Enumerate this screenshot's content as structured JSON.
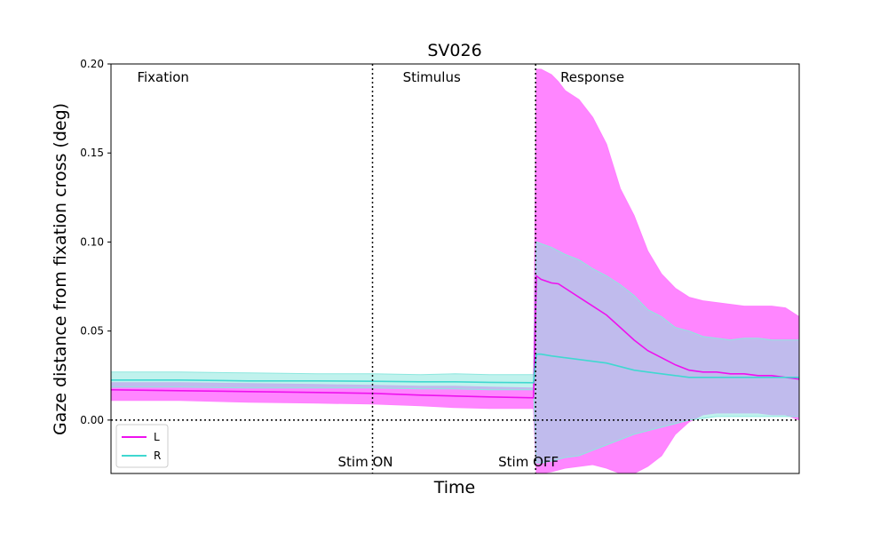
{
  "chart_data": {
    "type": "line",
    "title": "SV026",
    "xlabel": "Time",
    "ylabel": "Gaze distance from fixation cross (deg)",
    "ylim": [
      -0.03,
      0.2
    ],
    "xlim": [
      0,
      100
    ],
    "yticks": [
      "0.00",
      "0.05",
      "0.10",
      "0.15",
      "0.20"
    ],
    "grid": false,
    "legend_position": "bottom-left",
    "phases": [
      {
        "label": "Fixation",
        "x": 3.8
      },
      {
        "label": "Stimulus",
        "x": 42.4
      },
      {
        "label": "Response",
        "x": 65.3
      }
    ],
    "markers": [
      {
        "label": "Stim ON",
        "x": 38
      },
      {
        "label": "Stim OFF",
        "x": 61.7
      }
    ],
    "zero_line": 0.0,
    "series": [
      {
        "name": "L",
        "color": "#ee11ee",
        "band_color": "#ff80ff",
        "x": [
          0,
          10,
          20,
          30,
          38,
          45,
          50,
          55,
          61.4,
          61.8,
          62.5,
          64,
          65,
          66,
          68,
          70,
          72,
          74,
          76,
          78,
          80,
          82,
          84,
          86,
          88,
          90,
          92,
          94,
          96,
          98,
          100
        ],
        "mean": [
          0.017,
          0.0165,
          0.016,
          0.0155,
          0.015,
          0.014,
          0.0135,
          0.013,
          0.0125,
          0.081,
          0.079,
          0.077,
          0.0765,
          0.074,
          0.069,
          0.064,
          0.059,
          0.052,
          0.045,
          0.039,
          0.035,
          0.031,
          0.028,
          0.027,
          0.027,
          0.026,
          0.026,
          0.025,
          0.025,
          0.024,
          0.023
        ],
        "upper": [
          0.021,
          0.021,
          0.0205,
          0.02,
          0.0195,
          0.019,
          0.019,
          0.0185,
          0.018,
          0.197,
          0.197,
          0.194,
          0.19,
          0.185,
          0.18,
          0.17,
          0.155,
          0.13,
          0.115,
          0.095,
          0.082,
          0.074,
          0.069,
          0.067,
          0.066,
          0.065,
          0.064,
          0.064,
          0.064,
          0.063,
          0.058
        ],
        "lower": [
          0.011,
          0.011,
          0.01,
          0.0095,
          0.009,
          0.008,
          0.007,
          0.0065,
          0.0065,
          -0.03,
          -0.03,
          -0.029,
          -0.028,
          -0.027,
          -0.026,
          -0.025,
          -0.027,
          -0.03,
          -0.03,
          -0.026,
          -0.02,
          -0.008,
          -0.001,
          0.003,
          0.004,
          0.004,
          0.004,
          0.004,
          0.003,
          0.003,
          0.0
        ]
      },
      {
        "name": "R",
        "color": "#40d8d0",
        "band_color": "#8de8df",
        "x": [
          0,
          10,
          20,
          30,
          38,
          45,
          50,
          55,
          61.4,
          61.8,
          62.5,
          64,
          65,
          66,
          68,
          70,
          72,
          74,
          76,
          78,
          80,
          82,
          84,
          86,
          88,
          90,
          92,
          94,
          96,
          98,
          100
        ],
        "mean": [
          0.0225,
          0.0225,
          0.022,
          0.022,
          0.0218,
          0.0215,
          0.0215,
          0.0212,
          0.021,
          0.037,
          0.037,
          0.036,
          0.0355,
          0.035,
          0.034,
          0.033,
          0.032,
          0.03,
          0.028,
          0.027,
          0.026,
          0.025,
          0.024,
          0.024,
          0.024,
          0.024,
          0.024,
          0.024,
          0.024,
          0.024,
          0.024
        ],
        "upper": [
          0.027,
          0.027,
          0.0265,
          0.026,
          0.026,
          0.0255,
          0.026,
          0.0255,
          0.0255,
          0.1,
          0.099,
          0.097,
          0.095,
          0.093,
          0.09,
          0.085,
          0.081,
          0.076,
          0.07,
          0.062,
          0.058,
          0.052,
          0.05,
          0.047,
          0.046,
          0.045,
          0.046,
          0.046,
          0.045,
          0.045,
          0.045
        ],
        "lower": [
          0.0185,
          0.0185,
          0.018,
          0.018,
          0.018,
          0.0175,
          0.0175,
          0.017,
          0.017,
          -0.024,
          -0.024,
          -0.023,
          -0.022,
          -0.021,
          -0.02,
          -0.017,
          -0.014,
          -0.011,
          -0.008,
          -0.006,
          -0.004,
          -0.002,
          0.0,
          0.001,
          0.002,
          0.002,
          0.002,
          0.002,
          0.002,
          0.002,
          0.002
        ]
      }
    ]
  }
}
